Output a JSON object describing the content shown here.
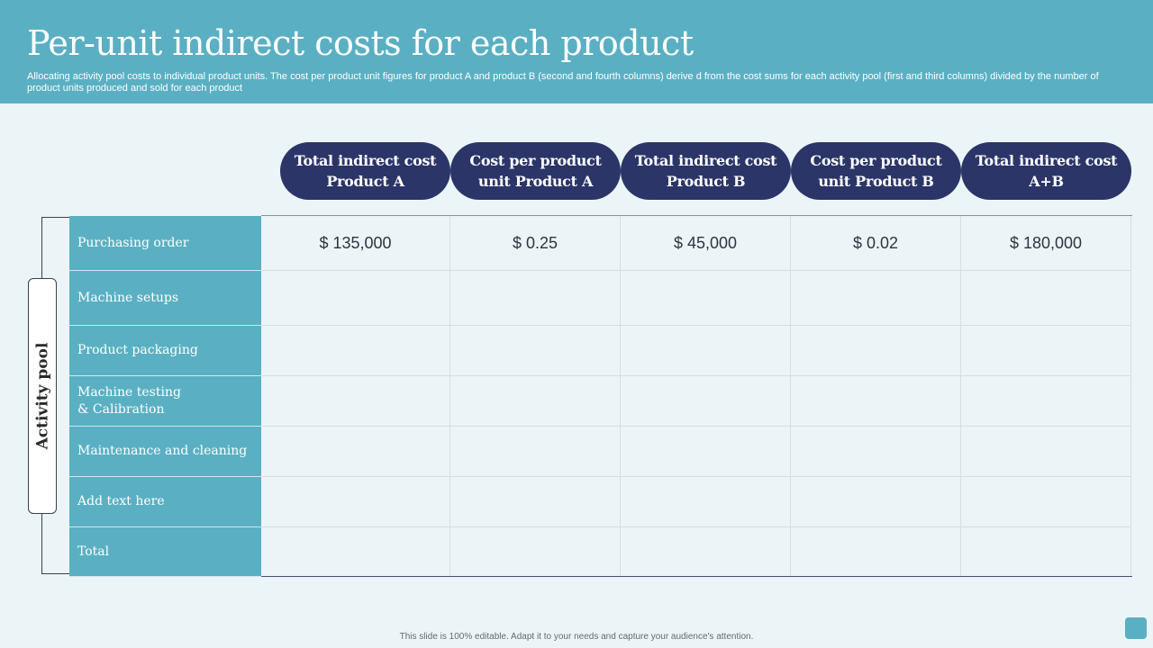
{
  "slide": {
    "title": "Per-unit indirect costs for each product",
    "subtitle": "Allocating activity  pool costs to individual product units. The cost per product unit figures for product A  and product B (second and fourth columns) derive d from the cost sums for each activity  pool (first and third columns) divided by the number of product units produced and sold for each product"
  },
  "table": {
    "side_label": "Activity pool",
    "columns": [
      "Total indirect cost Product A",
      "Cost per product unit Product A",
      "Total indirect cost Product B",
      "Cost per product unit Product B",
      "Total indirect cost A+B"
    ],
    "rows": [
      {
        "label": "Purchasing order",
        "values": [
          "$ 135,000",
          "$ 0.25",
          "$ 45,000",
          "$ 0.02",
          "$ 180,000"
        ]
      },
      {
        "label": "Machine setups",
        "values": [
          "",
          "",
          "",
          "",
          ""
        ]
      },
      {
        "label": "Product packaging",
        "values": [
          "",
          "",
          "",
          "",
          ""
        ]
      },
      {
        "label": "Machine testing\n& Calibration",
        "values": [
          "",
          "",
          "",
          "",
          ""
        ]
      },
      {
        "label": "Maintenance and cleaning",
        "values": [
          "",
          "",
          "",
          "",
          ""
        ]
      },
      {
        "label": "Add text here",
        "values": [
          "",
          "",
          "",
          "",
          ""
        ]
      },
      {
        "label": "Total",
        "values": [
          "",
          "",
          "",
          "",
          ""
        ]
      }
    ]
  },
  "footer": {
    "note": "This slide is 100% editable.  Adapt it to your needs and capture your audience's attention."
  },
  "colors": {
    "header_bg": "#5ab0c2",
    "pill_bg": "#2c3568",
    "page_bg": "#ebf5f8"
  }
}
